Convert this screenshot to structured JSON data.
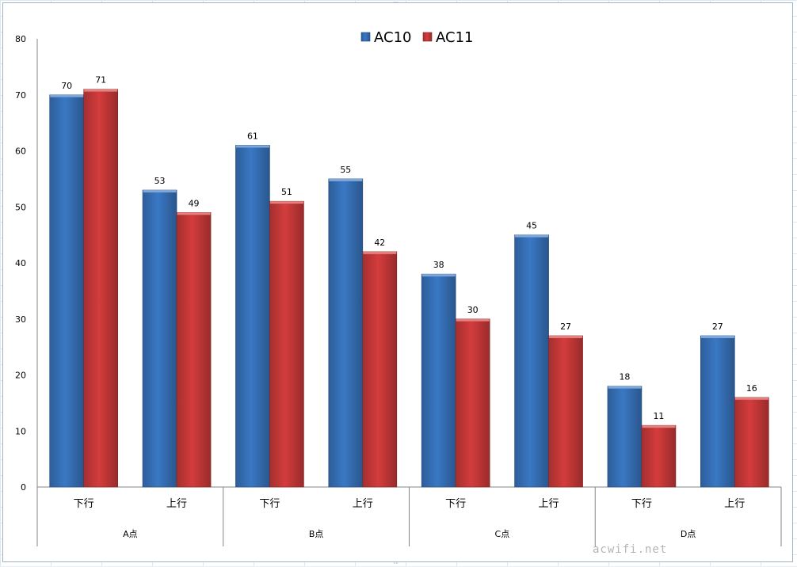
{
  "watermark": "acwifi.net",
  "chart_data": {
    "type": "bar",
    "title": "",
    "xlabel": "",
    "ylabel": "",
    "ylim": [
      0,
      80
    ],
    "yticks": [
      0,
      10,
      20,
      30,
      40,
      50,
      60,
      70,
      80
    ],
    "grid": false,
    "legend_position": "top-center",
    "categories": [
      "下行",
      "上行",
      "下行",
      "上行",
      "下行",
      "上行",
      "下行",
      "上行"
    ],
    "groups": [
      {
        "label": "A点",
        "span": 2
      },
      {
        "label": "B点",
        "span": 2
      },
      {
        "label": "C点",
        "span": 2
      },
      {
        "label": "D点",
        "span": 2
      }
    ],
    "series": [
      {
        "name": "AC10",
        "color": "#3a78c4",
        "values": [
          70,
          53,
          61,
          55,
          38,
          45,
          18,
          27
        ]
      },
      {
        "name": "AC11",
        "color": "#d43c3c",
        "values": [
          71,
          49,
          51,
          42,
          30,
          27,
          11,
          16
        ]
      }
    ]
  }
}
